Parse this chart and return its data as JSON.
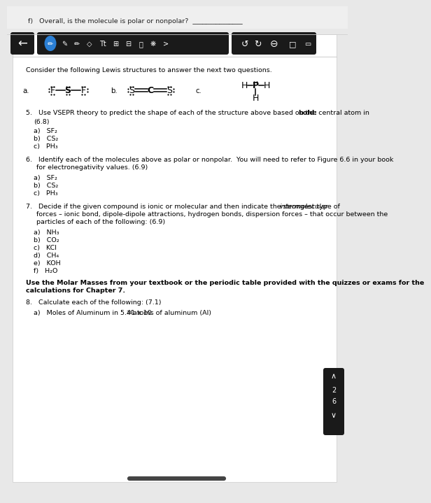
{
  "bg_color": "#e8e8e8",
  "page_bg": "#ffffff",
  "top_bar_color": "#f2f2f2",
  "toolbar_color": "#1a1a1a",
  "top_text": "f)   Overall, is the molecule is polar or nonpolar?  _______________",
  "intro_text": "Consider the following Lewis structures to answer the next two questions.",
  "q5_line1": "5.   Use VSEPR theory to predict the shape of each of the structure above based on the central atom in bold:",
  "q5_pts": "(6.8)",
  "q5a": "a)   SF₂",
  "q5b": "b)   CS₂",
  "q5c": "c)   PH₃",
  "q6_line1": "6.   Identify each of the molecules above as polar or nonpolar.  You will need to refer to Figure 6.6 in your book",
  "q6_line2": "     for electronegativity values. (6.9)",
  "q6a": "a)   SF₂",
  "q6b": "b)   CS₂",
  "q6c": "c)   PH₃",
  "q7_line1a": "7.   Decide if the given compound is ionic or molecular and then indicate the strongest type of ",
  "q7_line1b": "intermolecular",
  "q7_line2": "     forces – ionic bond, dipole-dipole attractions, hydrogen bonds, dispersion forces – that occur between the",
  "q7_line3": "     particles of each of the following: (6.9)",
  "q7a": "a)   NH₃",
  "q7b": "b)   CO₂",
  "q7c": "c)   KCl",
  "q7d": "d)   CH₄",
  "q7e": "e)   KOH",
  "q7f": "f)   H₂O",
  "bold_line1": "Use the Molar Masses from your textbook or the periodic table provided with the quizzes or exams for the",
  "bold_line2": "calculations for Chapter 7.",
  "q8_header": "8.   Calculate each of the following: (7.1)",
  "q8a_pre": "a)   Moles of Aluminum in 5.41 x 10",
  "q8a_sup": "24",
  "q8a_post": " atoms of aluminum (Al)"
}
